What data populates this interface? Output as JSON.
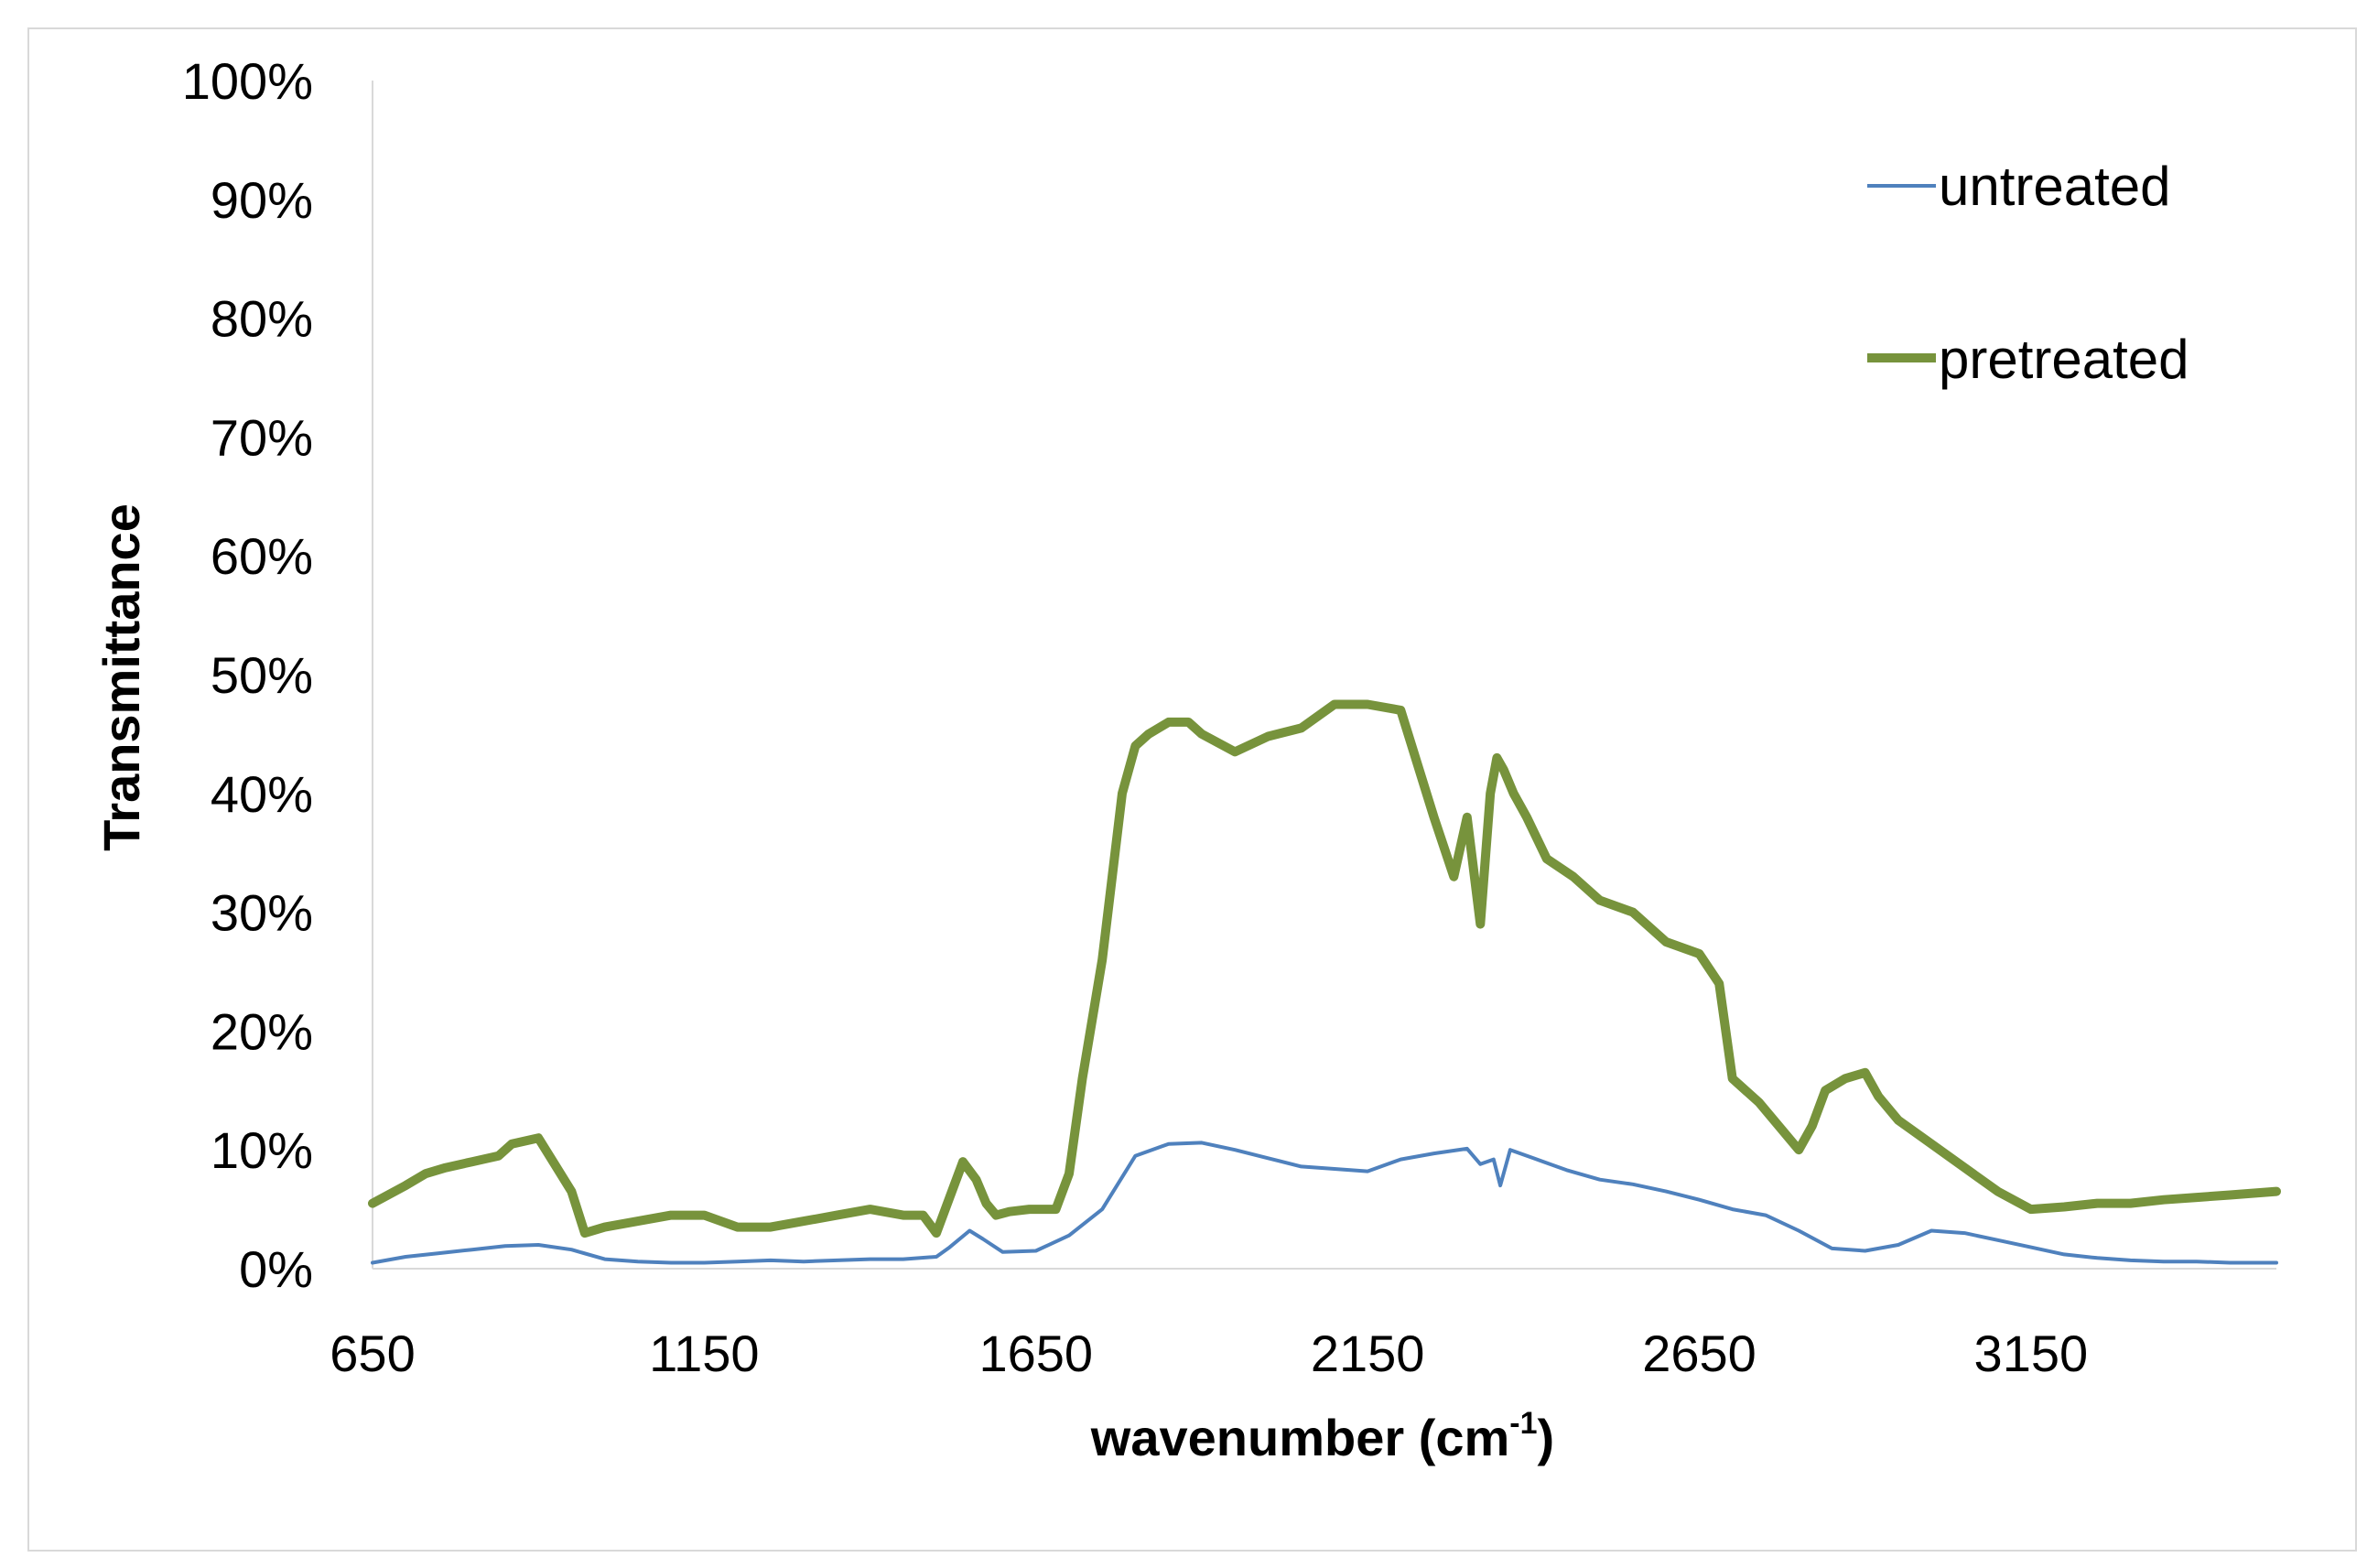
{
  "chart_data": {
    "type": "line",
    "title": "",
    "xlabel": "wavenumber (cm",
    "xlabel_superscript": "-1",
    "xlabel_suffix": ")",
    "ylabel": "Transmittance",
    "xlim": [
      650,
      3520
    ],
    "ylim": [
      0,
      100
    ],
    "x_ticks": [
      650,
      1150,
      1650,
      2150,
      2650,
      3150
    ],
    "x_tick_labels": [
      "650",
      "1150",
      "1650",
      "2150",
      "2650",
      "3150"
    ],
    "y_ticks": [
      0,
      10,
      20,
      30,
      40,
      50,
      60,
      70,
      80,
      90,
      100
    ],
    "y_tick_labels": [
      "0%",
      "10%",
      "20%",
      "30%",
      "40%",
      "50%",
      "60%",
      "70%",
      "80%",
      "90%",
      "100%"
    ],
    "grid": false,
    "legend_position": "top-right",
    "series": [
      {
        "name": "untreated",
        "color": "#4f81bd",
        "line_weight": "thin",
        "x": [
          650,
          700,
          750,
          800,
          850,
          900,
          950,
          1000,
          1050,
          1100,
          1150,
          1200,
          1250,
          1300,
          1350,
          1400,
          1450,
          1500,
          1520,
          1550,
          1570,
          1600,
          1650,
          1700,
          1750,
          1800,
          1850,
          1900,
          1950,
          2000,
          2050,
          2100,
          2150,
          2200,
          2250,
          2300,
          2320,
          2340,
          2350,
          2365,
          2400,
          2450,
          2500,
          2550,
          2600,
          2650,
          2700,
          2750,
          2800,
          2850,
          2900,
          2950,
          3000,
          3050,
          3100,
          3150,
          3200,
          3250,
          3300,
          3350,
          3400,
          3450,
          3520
        ],
        "y": [
          0.5,
          1.0,
          1.3,
          1.6,
          1.9,
          2.0,
          1.6,
          0.8,
          0.6,
          0.5,
          0.5,
          0.6,
          0.7,
          0.6,
          0.7,
          0.8,
          0.8,
          1.0,
          1.8,
          3.2,
          2.5,
          1.4,
          1.5,
          2.8,
          5.0,
          9.5,
          10.5,
          10.6,
          10.0,
          9.3,
          8.6,
          8.4,
          8.2,
          9.2,
          9.7,
          10.1,
          8.8,
          9.2,
          7.0,
          10.0,
          9.3,
          8.3,
          7.5,
          7.1,
          6.5,
          5.8,
          5.0,
          4.5,
          3.2,
          1.7,
          1.5,
          2.0,
          3.2,
          3.0,
          2.4,
          1.8,
          1.2,
          0.9,
          0.7,
          0.6,
          0.6,
          0.5,
          0.5
        ]
      },
      {
        "name": "pretreated",
        "color": "#77933c",
        "line_weight": "thick",
        "x": [
          650,
          700,
          730,
          760,
          800,
          840,
          860,
          900,
          950,
          970,
          1000,
          1050,
          1100,
          1150,
          1200,
          1250,
          1300,
          1350,
          1400,
          1450,
          1480,
          1500,
          1520,
          1540,
          1560,
          1575,
          1590,
          1610,
          1640,
          1680,
          1700,
          1720,
          1750,
          1780,
          1800,
          1820,
          1850,
          1880,
          1900,
          1950,
          2000,
          2050,
          2100,
          2150,
          2200,
          2250,
          2280,
          2300,
          2320,
          2335,
          2345,
          2355,
          2370,
          2390,
          2420,
          2460,
          2500,
          2550,
          2600,
          2650,
          2680,
          2700,
          2740,
          2770,
          2800,
          2820,
          2840,
          2870,
          2900,
          2920,
          2950,
          3000,
          3050,
          3100,
          3150,
          3200,
          3250,
          3300,
          3350,
          3400,
          3450,
          3520
        ],
        "y": [
          5.5,
          7.0,
          8.0,
          8.5,
          9.0,
          9.5,
          10.5,
          11.0,
          6.5,
          3.0,
          3.5,
          4.0,
          4.5,
          4.5,
          3.5,
          3.5,
          4.0,
          4.5,
          5.0,
          4.5,
          4.5,
          3.0,
          6.0,
          9.0,
          7.5,
          5.5,
          4.5,
          4.8,
          5.0,
          5.0,
          8.0,
          16.0,
          26.0,
          40.0,
          44.0,
          45.0,
          46.0,
          46.0,
          45.0,
          43.5,
          44.8,
          45.5,
          47.5,
          47.5,
          47.0,
          38.0,
          33.0,
          38.0,
          29.0,
          40.0,
          43.0,
          42.0,
          40.0,
          38.0,
          34.5,
          33.0,
          31.0,
          30.0,
          27.5,
          26.5,
          24.0,
          16.0,
          14.0,
          12.0,
          10.0,
          12.0,
          15.0,
          16.0,
          16.5,
          14.5,
          12.5,
          10.5,
          8.5,
          6.5,
          5.0,
          5.2,
          5.5,
          5.5,
          5.8,
          6.0,
          6.2,
          6.5
        ]
      }
    ]
  }
}
